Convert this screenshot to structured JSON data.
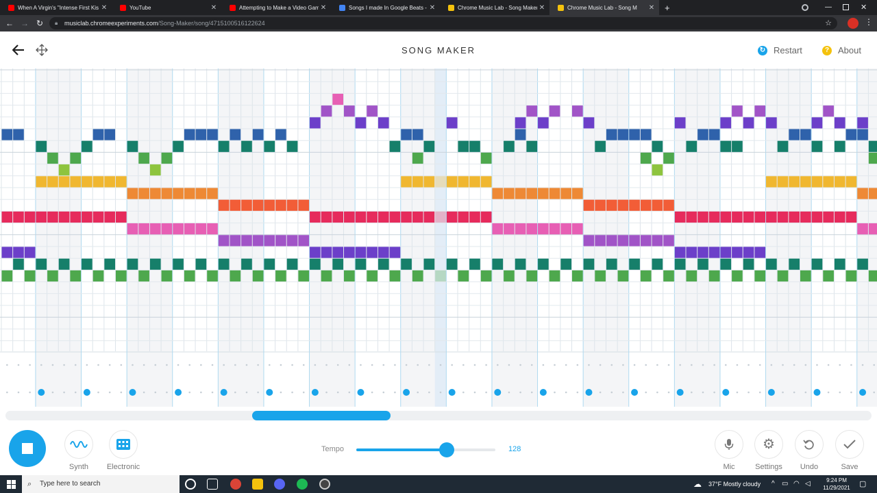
{
  "browser": {
    "tabs": [
      {
        "title": "When A Virgin's \"Intense First Kis",
        "favicon": "youtube-favicon",
        "color": "#ff0000",
        "active": false
      },
      {
        "title": "YouTube",
        "favicon": "youtube-favicon",
        "color": "#ff0000",
        "active": false
      },
      {
        "title": "Attempting to Make a Video Gam",
        "favicon": "youtube-favicon",
        "color": "#ff0000",
        "active": false
      },
      {
        "title": "Songs I made In Google Beats - G",
        "favicon": "docs-favicon",
        "color": "#4285f4",
        "active": false
      },
      {
        "title": "Chrome Music Lab - Song Maker",
        "favicon": "musiclab-favicon",
        "color": "#f4c20d",
        "active": false
      },
      {
        "title": "Chrome Music Lab - Song M",
        "favicon": "musiclab-favicon",
        "color": "#f4c20d",
        "active": true
      }
    ],
    "new_tab": "+",
    "url_host": "musiclab.chromeexperiments.com",
    "url_path": "/Song-Maker/song/4715100516122624"
  },
  "header": {
    "title": "SONG MAKER",
    "restart_label": "Restart",
    "about_label": "About",
    "about_glyph": "?",
    "restart_color": "#19a4ea",
    "about_color": "#f4c20d"
  },
  "grid": {
    "rows": 24,
    "measure_cols": 4,
    "playhead_col": 38,
    "note_colors": {
      "2": "#e75fb4",
      "3": "#a154c7",
      "4": "#6c3fc9",
      "5": "#2f62ab",
      "6": "#167f6a",
      "7": "#4ea84d",
      "8": "#8ec43e",
      "9": "#f0b730",
      "10": "#ee8935",
      "11": "#f25d37",
      "12": "#e62b5c",
      "13": "#e75fb4",
      "14": "#a154c7",
      "15": "#6c3fc9",
      "16": "#167f6a",
      "17": "#4ea84d"
    },
    "notes": [
      {
        "row": 5,
        "cols": [
          0,
          1,
          8,
          9,
          16,
          17,
          18,
          20,
          22,
          24,
          35,
          36,
          45,
          53,
          54,
          55,
          56,
          61,
          62,
          69,
          70,
          74,
          75
        ]
      },
      {
        "row": 6,
        "cols": [
          3,
          7,
          11,
          15,
          19,
          21,
          23,
          25,
          34,
          37,
          40,
          41,
          44,
          46,
          52,
          57,
          60,
          63,
          64,
          68,
          71,
          73,
          76
        ]
      },
      {
        "row": 7,
        "cols": [
          4,
          6,
          12,
          14,
          36,
          42,
          56,
          58,
          76
        ]
      },
      {
        "row": 8,
        "cols": [
          5,
          13,
          57
        ]
      },
      {
        "row": 4,
        "cols": [
          27,
          31,
          33,
          39,
          45,
          47,
          51,
          59,
          63,
          65,
          67,
          71,
          73,
          75
        ]
      },
      {
        "row": 3,
        "cols": [
          28,
          30,
          32,
          46,
          48,
          50,
          64,
          66,
          72
        ]
      },
      {
        "row": 2,
        "cols": [
          29
        ]
      },
      {
        "row": 9,
        "cols": [
          3,
          4,
          5,
          6,
          7,
          8,
          9,
          10,
          35,
          36,
          37,
          38,
          39,
          40,
          41,
          42,
          67,
          68,
          69,
          70,
          71,
          72,
          73,
          74
        ]
      },
      {
        "row": 10,
        "cols": [
          11,
          12,
          13,
          14,
          15,
          16,
          17,
          18,
          43,
          44,
          45,
          46,
          47,
          48,
          49,
          50,
          75,
          76
        ]
      },
      {
        "row": 11,
        "cols": [
          19,
          20,
          21,
          22,
          23,
          24,
          25,
          26,
          51,
          52,
          53,
          54,
          55,
          56,
          57,
          58
        ]
      },
      {
        "row": 12,
        "cols": [
          0,
          1,
          2,
          3,
          4,
          5,
          6,
          7,
          8,
          9,
          10,
          27,
          28,
          29,
          30,
          31,
          32,
          33,
          34,
          35,
          36,
          37,
          38,
          39,
          40,
          41,
          42,
          59,
          60,
          61,
          62,
          63,
          64,
          65,
          66,
          67,
          68,
          69,
          70,
          71,
          72,
          73,
          74
        ]
      },
      {
        "row": 13,
        "cols": [
          11,
          12,
          13,
          14,
          15,
          16,
          17,
          18,
          43,
          44,
          45,
          46,
          47,
          48,
          49,
          50,
          75,
          76
        ]
      },
      {
        "row": 14,
        "cols": [
          19,
          20,
          21,
          22,
          23,
          24,
          25,
          26,
          51,
          52,
          53,
          54,
          55,
          56,
          57,
          58
        ]
      },
      {
        "row": 15,
        "cols": [
          0,
          1,
          2,
          27,
          28,
          29,
          30,
          31,
          32,
          33,
          34,
          59,
          60,
          61,
          62,
          63,
          64,
          65,
          66
        ]
      },
      {
        "row": 16,
        "cols": [
          1,
          3,
          5,
          7,
          9,
          11,
          13,
          15,
          17,
          19,
          21,
          23,
          25,
          27,
          29,
          31,
          33,
          35,
          37,
          39,
          41,
          43,
          45,
          47,
          49,
          51,
          53,
          55,
          57,
          59,
          61,
          63,
          65,
          67,
          69,
          71,
          73,
          75
        ]
      },
      {
        "row": 17,
        "cols": [
          0,
          2,
          4,
          6,
          8,
          10,
          12,
          14,
          16,
          18,
          20,
          22,
          24,
          26,
          28,
          30,
          32,
          34,
          36,
          38,
          40,
          42,
          44,
          46,
          48,
          50,
          52,
          54,
          56,
          58,
          60,
          62,
          64,
          66,
          68,
          70,
          72,
          74,
          76
        ]
      }
    ],
    "percussion_beats": [
      3,
      7,
      11,
      15,
      19,
      23,
      27,
      31,
      35,
      39,
      43,
      47,
      51,
      55,
      59,
      63,
      67,
      71,
      75
    ]
  },
  "scroll": {
    "position": 0.36
  },
  "controls": {
    "synth_label": "Synth",
    "electronic_label": "Electronic",
    "tempo_label": "Tempo",
    "tempo_value": "128",
    "tempo_fraction": 0.65,
    "mic_label": "Mic",
    "settings_label": "Settings",
    "undo_label": "Undo",
    "save_label": "Save",
    "accent_color": "#19a4ea"
  },
  "taskbar": {
    "search_placeholder": "Type here to search",
    "weather": "37°F  Mostly cloudy",
    "time": "9:24 PM",
    "date": "11/29/2021"
  }
}
